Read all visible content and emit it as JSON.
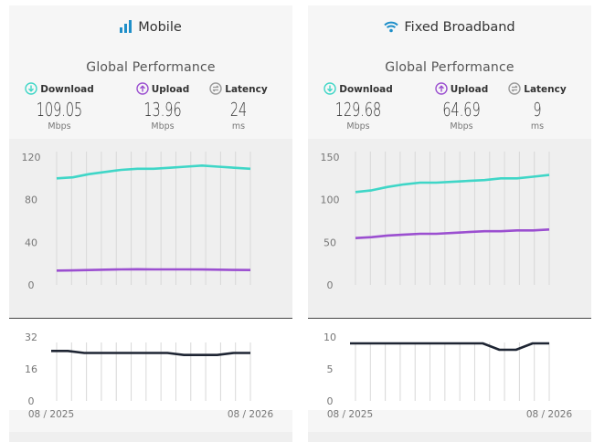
{
  "cards": [
    {
      "id": "mobile",
      "title": "Mobile",
      "title_icon": "signal-bars-icon",
      "performance_title": "Global Performance",
      "metrics": {
        "download": {
          "label": "Download",
          "value": "109.05",
          "unit": "Mbps",
          "icon": "download-arrow-icon"
        },
        "upload": {
          "label": "Upload",
          "value": "13.96",
          "unit": "Mbps",
          "icon": "upload-arrow-icon"
        },
        "latency": {
          "label": "Latency",
          "value": "24",
          "unit": "ms",
          "icon": "latency-icon"
        }
      },
      "speed_chart": {
        "type": "line",
        "y_ticks": [
          "120",
          "80",
          "40",
          "0"
        ],
        "ylim": [
          0,
          120
        ],
        "series": [
          {
            "key": "download",
            "values": [
              100,
              101,
              104,
              106,
              108,
              109,
              109,
              110,
              111,
              112,
              111,
              110,
              109
            ]
          },
          {
            "key": "upload",
            "values": [
              13.5,
              13.6,
              14,
              14.3,
              14.6,
              14.7,
              14.6,
              14.6,
              14.6,
              14.5,
              14.3,
              14.1,
              14
            ]
          }
        ]
      },
      "latency_chart": {
        "type": "line",
        "y_ticks": [
          "32",
          "16",
          "0"
        ],
        "ylim": [
          0,
          32
        ],
        "values": [
          25,
          25,
          24,
          24,
          24,
          24,
          24,
          24,
          23,
          23,
          23,
          24,
          24
        ],
        "x_labels": [
          "08 / 2025",
          "08 / 2026"
        ]
      }
    },
    {
      "id": "fixed",
      "title": "Fixed Broadband",
      "title_icon": "wifi-icon",
      "performance_title": "Global Performance",
      "metrics": {
        "download": {
          "label": "Download",
          "value": "129.68",
          "unit": "Mbps",
          "icon": "download-arrow-icon"
        },
        "upload": {
          "label": "Upload",
          "value": "64.69",
          "unit": "Mbps",
          "icon": "upload-arrow-icon"
        },
        "latency": {
          "label": "Latency",
          "value": "9",
          "unit": "ms",
          "icon": "latency-icon"
        }
      },
      "speed_chart": {
        "type": "line",
        "y_ticks": [
          "150",
          "100",
          "50",
          "0"
        ],
        "ylim": [
          0,
          150
        ],
        "series": [
          {
            "key": "download",
            "values": [
              109,
              111,
              115,
              118,
              120,
              120,
              121,
              122,
              123,
              125,
              125,
              127,
              129
            ]
          },
          {
            "key": "upload",
            "values": [
              55,
              56,
              58,
              59,
              60,
              60,
              61,
              62,
              63,
              63,
              64,
              64,
              65
            ]
          }
        ]
      },
      "latency_chart": {
        "type": "line",
        "y_ticks": [
          "10",
          "5",
          "0"
        ],
        "ylim": [
          0,
          10
        ],
        "values": [
          9,
          9,
          9,
          9,
          9,
          9,
          9,
          9,
          9,
          8,
          8,
          9,
          9
        ],
        "x_labels": [
          "08 / 2025",
          "08 / 2026"
        ]
      }
    }
  ],
  "colors": {
    "download": "#3fd6c7",
    "upload": "#9b4fd0",
    "latency": "#1e2533",
    "latency_icon": "#9a9a9a",
    "grid": "#d8d8d8",
    "axis_text": "#777777"
  }
}
